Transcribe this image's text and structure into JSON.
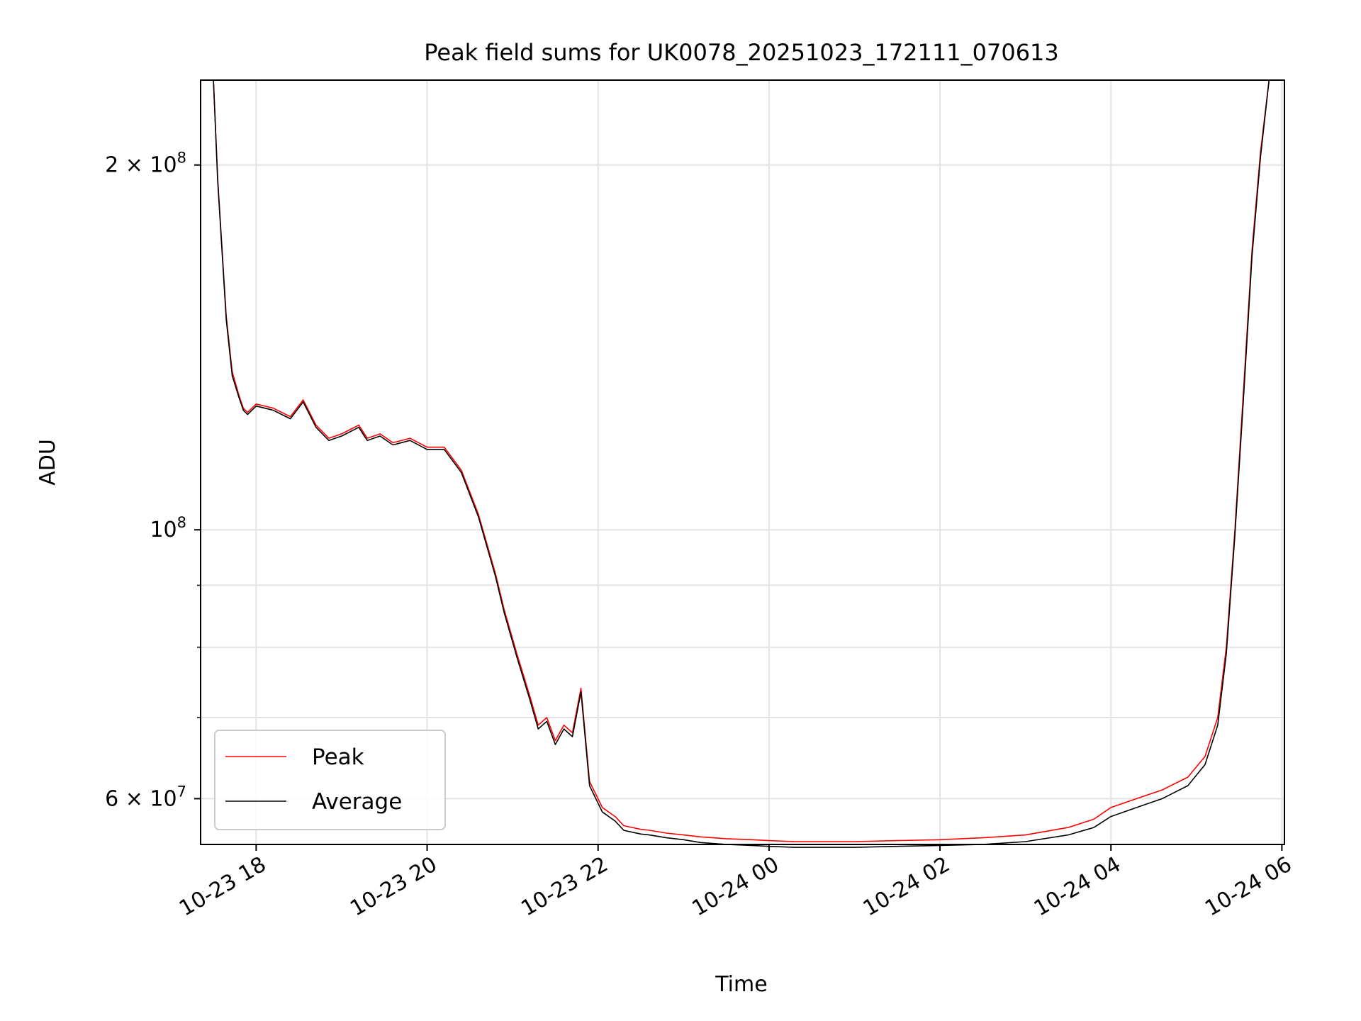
{
  "chart_data": {
    "type": "line",
    "title": "Peak field sums for UK0078_20251023_172111_070613",
    "xlabel": "Time",
    "ylabel": "ADU",
    "yscale": "log",
    "xlim_hours": [
      17.35,
      30.03
    ],
    "ylim": [
      55000000,
      235000000
    ],
    "x_tick_labels": [
      "10-23 18",
      "10-23 20",
      "10-23 22",
      "10-24 00",
      "10-24 02",
      "10-24 04",
      "10-24 06"
    ],
    "x_tick_hours": [
      18,
      20,
      22,
      24,
      26,
      28,
      30
    ],
    "y_tick_labels": [
      {
        "base": "2 × 10",
        "exp": "8",
        "value": 200000000
      },
      {
        "base": "10",
        "exp": "8",
        "value": 100000000
      },
      {
        "base": "6 × 10",
        "exp": "7",
        "value": 60000000
      }
    ],
    "y_minor_values": [
      70000000,
      80000000,
      90000000
    ],
    "grid": true,
    "legend_position": "lower-left",
    "series": [
      {
        "name": "Peak",
        "color": "#ff0000",
        "x_hours": [
          17.35,
          17.5,
          17.55,
          17.65,
          17.72,
          17.8,
          17.85,
          17.9,
          18.0,
          18.2,
          18.4,
          18.55,
          18.7,
          18.85,
          19.0,
          19.2,
          19.3,
          19.45,
          19.6,
          19.8,
          20.0,
          20.2,
          20.4,
          20.6,
          20.8,
          20.9,
          21.05,
          21.2,
          21.3,
          21.4,
          21.5,
          21.6,
          21.7,
          21.8,
          21.9,
          22.05,
          22.2,
          22.3,
          22.4,
          22.5,
          22.6,
          22.8,
          23.0,
          23.2,
          23.5,
          23.8,
          24.0,
          24.3,
          24.6,
          25.0,
          25.5,
          26.0,
          26.5,
          27.0,
          27.5,
          27.8,
          28.0,
          28.3,
          28.6,
          28.9,
          29.1,
          29.25,
          29.35,
          29.45,
          29.55,
          29.65,
          29.75,
          29.85,
          29.92,
          30.03
        ],
        "values": [
          235000000,
          235000000,
          195000000,
          150000000,
          135000000,
          129000000,
          126000000,
          125000000,
          127000000,
          126000000,
          124000000,
          128000000,
          122000000,
          119000000,
          120000000,
          122000000,
          119000000,
          120000000,
          118000000,
          119000000,
          117000000,
          117000000,
          112000000,
          103000000,
          92000000,
          86000000,
          79000000,
          73000000,
          69000000,
          70000000,
          67000000,
          69000000,
          68000000,
          74000000,
          62000000,
          59000000,
          58000000,
          57000000,
          56800000,
          56600000,
          56500000,
          56200000,
          56000000,
          55800000,
          55600000,
          55500000,
          55400000,
          55300000,
          55300000,
          55300000,
          55400000,
          55500000,
          55700000,
          56000000,
          56800000,
          57700000,
          59000000,
          60000000,
          61000000,
          62500000,
          65000000,
          70000000,
          80000000,
          100000000,
          130000000,
          170000000,
          205000000,
          235000000,
          235000000,
          235000000
        ]
      },
      {
        "name": "Average",
        "color": "#000000",
        "x_hours": [
          17.35,
          17.5,
          17.55,
          17.65,
          17.72,
          17.8,
          17.85,
          17.9,
          18.0,
          18.2,
          18.4,
          18.55,
          18.7,
          18.85,
          19.0,
          19.2,
          19.3,
          19.45,
          19.6,
          19.8,
          20.0,
          20.2,
          20.4,
          20.6,
          20.8,
          20.9,
          21.05,
          21.2,
          21.3,
          21.4,
          21.5,
          21.6,
          21.7,
          21.8,
          21.9,
          22.05,
          22.2,
          22.3,
          22.4,
          22.5,
          22.6,
          22.8,
          23.0,
          23.2,
          23.5,
          23.8,
          24.0,
          24.3,
          24.6,
          25.0,
          25.5,
          26.0,
          26.5,
          27.0,
          27.5,
          27.8,
          28.0,
          28.3,
          28.6,
          28.9,
          29.1,
          29.25,
          29.35,
          29.45,
          29.55,
          29.65,
          29.75,
          29.85,
          29.92,
          30.03
        ],
        "values": [
          235000000,
          235000000,
          194000000,
          149000000,
          134000000,
          128500000,
          125500000,
          124500000,
          126500000,
          125500000,
          123500000,
          127500000,
          121500000,
          118500000,
          119500000,
          121500000,
          118500000,
          119500000,
          117500000,
          118500000,
          116500000,
          116500000,
          111500000,
          102500000,
          91500000,
          85500000,
          78500000,
          72500000,
          68500000,
          69500000,
          66500000,
          68500000,
          67500000,
          73500000,
          61500000,
          58500000,
          57500000,
          56500000,
          56300000,
          56100000,
          56000000,
          55700000,
          55500000,
          55200000,
          55000000,
          54900000,
          54800000,
          54700000,
          54700000,
          54700000,
          54800000,
          54900000,
          55000000,
          55300000,
          56000000,
          56800000,
          58000000,
          59000000,
          60000000,
          61500000,
          64000000,
          69000000,
          79000000,
          99000000,
          128000000,
          168000000,
          203000000,
          235000000,
          235000000,
          235000000
        ]
      }
    ]
  }
}
